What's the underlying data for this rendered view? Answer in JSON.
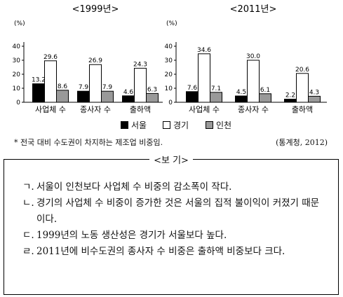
{
  "chart_data": [
    {
      "type": "bar",
      "title": "<1999년>",
      "ylabel": "(%)",
      "ylim": [
        0,
        40
      ],
      "yticks": [
        0,
        10,
        20,
        30,
        40
      ],
      "categories": [
        "사업체 수",
        "종사자 수",
        "출하액"
      ],
      "series": [
        {
          "name": "서울",
          "values": [
            13.2,
            7.9,
            4.6
          ]
        },
        {
          "name": "경기",
          "values": [
            29.6,
            26.9,
            24.3
          ]
        },
        {
          "name": "인천",
          "values": [
            8.6,
            7.9,
            6.3
          ]
        }
      ]
    },
    {
      "type": "bar",
      "title": "<2011년>",
      "ylabel": "(%)",
      "ylim": [
        0,
        40
      ],
      "yticks": [
        0,
        10,
        20,
        30,
        40
      ],
      "categories": [
        "사업체 수",
        "종사자 수",
        "출하액"
      ],
      "series": [
        {
          "name": "서울",
          "values": [
            7.6,
            4.5,
            2.2
          ]
        },
        {
          "name": "경기",
          "values": [
            34.6,
            30.0,
            20.6
          ]
        },
        {
          "name": "인천",
          "values": [
            7.1,
            6.1,
            4.3
          ]
        }
      ]
    }
  ],
  "series_colors": {
    "서울": "#000000",
    "경기": "#ffffff",
    "인천": "#999999"
  },
  "legend": [
    {
      "label": "서울",
      "color": "#000000"
    },
    {
      "label": "경기",
      "color": "#ffffff"
    },
    {
      "label": "인천",
      "color": "#999999"
    }
  ],
  "note": "* 전국 대비 수도권이 차지하는 제조업 비중임.",
  "source": "(통계청, 2012)",
  "bogi": {
    "title": "<보 기>",
    "items": [
      {
        "marker": "ㄱ.",
        "text": "서울이 인천보다 사업체 수 비중의 감소폭이 작다."
      },
      {
        "marker": "ㄴ.",
        "text": "경기의 사업체 수 비중이 증가한 것은 서울의 집적 불이익이 커졌기 때문이다."
      },
      {
        "marker": "ㄷ.",
        "text": "1999년의 노동 생산성은 경기가 서울보다 높다."
      },
      {
        "marker": "ㄹ.",
        "text": "2011년에 비수도권의 종사자 수 비중은 출하액 비중보다 크다."
      }
    ]
  }
}
